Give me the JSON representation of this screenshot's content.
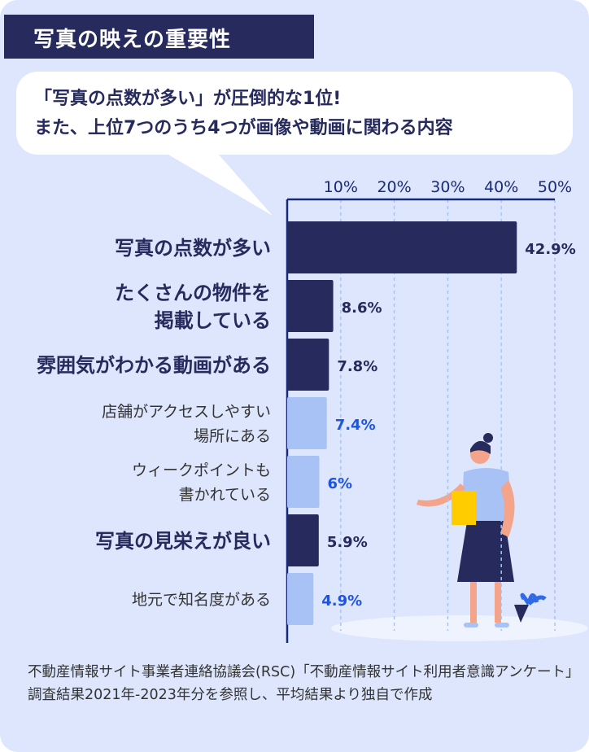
{
  "title": "写真の映えの重要性",
  "bubble": {
    "line1": "「写真の点数が多い」が圧倒的な1位!",
    "line2": "また、上位7つのうち4つが画像や動画に関わる内容"
  },
  "colors": {
    "background": "#dde6fc",
    "dark_bar": "#262a5c",
    "light_bar": "#a9c2f6",
    "highlight_label": "#1f54e0",
    "axis": "#1a2a7a",
    "grid": "#a9c2f6"
  },
  "chart_data": {
    "type": "bar",
    "orientation": "horizontal",
    "categories": [
      [
        "写真の点数が多い"
      ],
      [
        "たくさんの物件を",
        "掲載している"
      ],
      [
        "雰囲気がわかる動画がある"
      ],
      [
        "店舗がアクセスしやすい",
        "場所にある"
      ],
      [
        "ウィークポイントも",
        "書かれている"
      ],
      [
        "写真の見栄えが良い"
      ],
      [
        "地元で知名度がある"
      ]
    ],
    "values": [
      42.9,
      8.6,
      7.8,
      7.4,
      6,
      5.9,
      4.9
    ],
    "value_labels": [
      "42.9%",
      "8.6%",
      "7.8%",
      "7.4%",
      "6%",
      "5.9%",
      "4.9%"
    ],
    "emphasized": [
      true,
      true,
      true,
      false,
      false,
      true,
      false
    ],
    "xlim": [
      0,
      50
    ],
    "xticks": [
      "10%",
      "20%",
      "30%",
      "40%",
      "50%"
    ],
    "xtick_values": [
      10,
      20,
      30,
      40,
      50
    ],
    "grid": true,
    "axis_position": "top"
  },
  "footnote": "不動産情報サイト事業者連絡協議会(RSC)「不動産情報サイト利用者意識アンケート」調査結果2021年‐2023年分を参照し、平均結果より独自で作成"
}
